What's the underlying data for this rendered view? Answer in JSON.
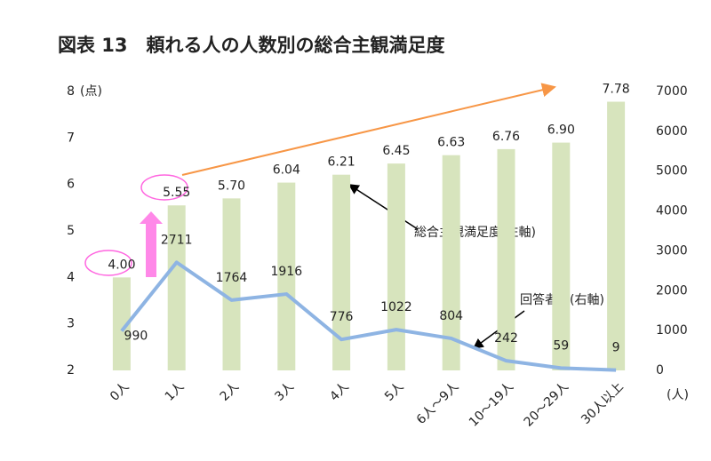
{
  "chart_data": {
    "type": "bar-line",
    "title": "図表 13　頼れる人の人数別の総合主観満足度",
    "categories": [
      "0人",
      "1人",
      "2人",
      "3人",
      "4人",
      "5人",
      "6人～9人",
      "10～19人",
      "20～29人",
      "30人以上"
    ],
    "series": [
      {
        "name": "総合主観満足度(左軸)",
        "type": "bar",
        "axis": "y",
        "color": "#d7e4bd",
        "values": [
          4.0,
          5.55,
          5.7,
          6.04,
          6.21,
          6.45,
          6.63,
          6.76,
          6.9,
          7.78
        ],
        "value_labels": [
          "4.00",
          "5.55",
          "5.70",
          "6.04",
          "6.21",
          "6.45",
          "6.63",
          "6.76",
          "6.90",
          "7.78"
        ]
      },
      {
        "name": "回答者数(右軸)",
        "type": "line",
        "axis": "y2",
        "color": "#8eb4e3",
        "values": [
          990,
          2711,
          1764,
          1916,
          776,
          1022,
          804,
          242,
          59,
          9
        ]
      }
    ],
    "y_unit": "(点)",
    "y2_unit": "(人)",
    "ylim": [
      2,
      8
    ],
    "yticks": [
      2,
      3,
      4,
      5,
      6,
      7,
      8
    ],
    "y2lim": [
      0,
      7000
    ],
    "y2ticks": [
      0,
      1000,
      2000,
      3000,
      4000,
      5000,
      6000,
      7000
    ],
    "grid": false
  }
}
